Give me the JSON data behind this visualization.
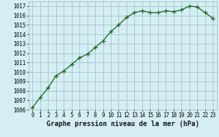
{
  "x": [
    0,
    1,
    2,
    3,
    4,
    5,
    6,
    7,
    8,
    9,
    10,
    11,
    12,
    13,
    14,
    15,
    16,
    17,
    18,
    19,
    20,
    21,
    22,
    23
  ],
  "y": [
    1006.2,
    1007.3,
    1008.3,
    1009.6,
    1010.1,
    1010.8,
    1011.5,
    1011.9,
    1012.6,
    1013.3,
    1014.3,
    1015.0,
    1015.8,
    1016.3,
    1016.5,
    1016.3,
    1016.3,
    1016.5,
    1016.4,
    1016.6,
    1017.0,
    1016.9,
    1016.3,
    1015.7
  ],
  "line_color": "#1a6e1a",
  "marker_color": "#1a6e1a",
  "bg_color": "#d4eef4",
  "grid_color": "#9ab8c0",
  "xlabel": "Graphe pression niveau de la mer (hPa)",
  "xlabel_fontsize": 7,
  "xlabel_color": "#1a1a1a",
  "ylim": [
    1006,
    1017.5
  ],
  "yticks": [
    1006,
    1007,
    1008,
    1009,
    1010,
    1011,
    1012,
    1013,
    1014,
    1015,
    1016,
    1017
  ],
  "xticks": [
    0,
    1,
    2,
    3,
    4,
    5,
    6,
    7,
    8,
    9,
    10,
    11,
    12,
    13,
    14,
    15,
    16,
    17,
    18,
    19,
    20,
    21,
    22,
    23
  ],
  "tick_fontsize": 5.5,
  "marker_size": 4,
  "line_width": 1.0
}
